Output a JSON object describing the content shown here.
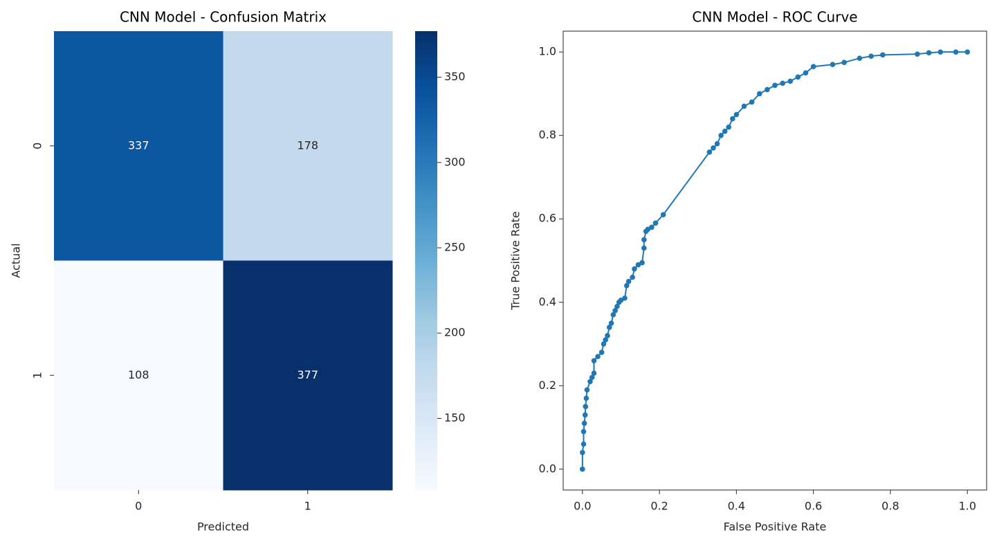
{
  "chart_data": [
    {
      "type": "heatmap",
      "title": "CNN Model - Confusion Matrix",
      "x_label": "Predicted",
      "y_label": "Actual",
      "x_categories": [
        "0",
        "1"
      ],
      "y_categories": [
        "0",
        "1"
      ],
      "values": [
        [
          337,
          178
        ],
        [
          108,
          377
        ]
      ],
      "colormap": [
        "#f7fbff",
        "#deebf7",
        "#c6dbef",
        "#9ecae1",
        "#6baed6",
        "#4292c6",
        "#2171b5",
        "#08519c",
        "#08306b"
      ],
      "clim": [
        108,
        377
      ],
      "cticks": [
        150,
        200,
        250,
        300,
        350
      ]
    },
    {
      "type": "line",
      "title": "CNN Model - ROC Curve",
      "x_label": "False Positive Rate",
      "y_label": "True Positive Rate",
      "x": [
        0,
        0,
        0.003,
        0.003,
        0.005,
        0.007,
        0.008,
        0.01,
        0.012,
        0.02,
        0.025,
        0.03,
        0.03,
        0.04,
        0.05,
        0.055,
        0.06,
        0.065,
        0.07,
        0.075,
        0.08,
        0.085,
        0.09,
        0.095,
        0.1,
        0.11,
        0.115,
        0.12,
        0.13,
        0.135,
        0.145,
        0.155,
        0.16,
        0.16,
        0.165,
        0.17,
        0.18,
        0.19,
        0.21,
        0.33,
        0.34,
        0.35,
        0.36,
        0.37,
        0.38,
        0.39,
        0.4,
        0.42,
        0.44,
        0.46,
        0.48,
        0.5,
        0.52,
        0.54,
        0.56,
        0.58,
        0.6,
        0.65,
        0.68,
        0.72,
        0.75,
        0.78,
        0.87,
        0.9,
        0.93,
        0.97,
        1.0
      ],
      "values": [
        0,
        0.04,
        0.06,
        0.09,
        0.11,
        0.13,
        0.15,
        0.17,
        0.19,
        0.21,
        0.22,
        0.23,
        0.26,
        0.27,
        0.28,
        0.3,
        0.31,
        0.32,
        0.34,
        0.35,
        0.37,
        0.38,
        0.39,
        0.4,
        0.405,
        0.41,
        0.44,
        0.45,
        0.46,
        0.48,
        0.49,
        0.495,
        0.53,
        0.55,
        0.57,
        0.575,
        0.58,
        0.59,
        0.61,
        0.76,
        0.77,
        0.78,
        0.8,
        0.81,
        0.82,
        0.84,
        0.85,
        0.87,
        0.88,
        0.9,
        0.91,
        0.92,
        0.925,
        0.93,
        0.94,
        0.95,
        0.965,
        0.97,
        0.975,
        0.985,
        0.99,
        0.993,
        0.995,
        0.998,
        1.0,
        1.0,
        1.0
      ],
      "color": "#1f77b4",
      "xlim": [
        -0.05,
        1.05
      ],
      "ylim": [
        -0.05,
        1.05
      ],
      "xticks": [
        {
          "value": 0,
          "label": "0.0"
        },
        0.2,
        0.4,
        0.6,
        0.8,
        {
          "value": 1,
          "label": "1.0"
        }
      ],
      "yticks": [
        {
          "value": 0,
          "label": "0.0"
        },
        0.2,
        0.4,
        0.6,
        0.8,
        {
          "value": 1,
          "label": "1.0"
        }
      ]
    }
  ]
}
